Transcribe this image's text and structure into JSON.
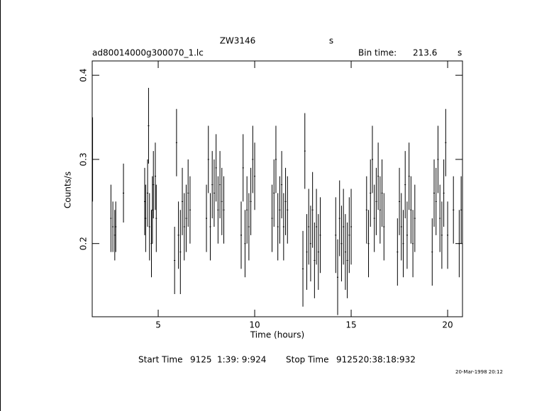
{
  "chart_data": {
    "type": "errorbar",
    "title": "ZW3146",
    "subtitle": "s",
    "file": "ad80014000g300070_1.lc",
    "bin_time_label": "Bin time:",
    "bin_time": 213.6,
    "bin_time_unit": "s",
    "x_label": "Time (hours)",
    "y_label": "Counts/s",
    "start_label": "Start Time",
    "start_day": "9125",
    "start_time": "1:39: 9:924",
    "stop_label": "Stop Time",
    "stop_day": "9125",
    "stop_time": "20:38:18:932",
    "date": "20-Mar-1998 20:12",
    "color": "#000000",
    "xlim": [
      1.58,
      20.77
    ],
    "ylim": [
      0.113,
      0.417
    ],
    "xticks": [
      5,
      10,
      15,
      20
    ],
    "yticks": [
      0.2,
      0.3,
      0.4
    ],
    "x": [
      1.6,
      2.55,
      2.65,
      2.75,
      2.8,
      3.2,
      4.3,
      4.35,
      4.45,
      4.5,
      4.55,
      4.65,
      4.7,
      4.75,
      4.85,
      4.9,
      5.85,
      5.95,
      6.05,
      6.15,
      6.25,
      6.35,
      6.45,
      6.55,
      6.65,
      7.5,
      7.6,
      7.7,
      7.8,
      7.9,
      8.0,
      8.1,
      8.2,
      8.3,
      8.4,
      9.3,
      9.4,
      9.5,
      9.6,
      9.7,
      9.8,
      9.9,
      10.0,
      10.9,
      11.0,
      11.1,
      11.2,
      11.3,
      11.4,
      11.5,
      11.6,
      11.7,
      12.5,
      12.6,
      12.7,
      12.8,
      12.9,
      13.0,
      13.1,
      13.2,
      13.3,
      13.4,
      14.2,
      14.3,
      14.4,
      14.5,
      14.6,
      14.7,
      14.8,
      14.9,
      15.0,
      15.8,
      15.9,
      16.0,
      16.1,
      16.2,
      16.3,
      16.4,
      16.5,
      16.6,
      16.7,
      17.4,
      17.5,
      17.6,
      17.7,
      17.8,
      17.9,
      18.0,
      18.1,
      18.2,
      18.3,
      19.2,
      19.3,
      19.4,
      19.5,
      19.6,
      19.7,
      19.8,
      19.9,
      20.0,
      20.3,
      20.6,
      20.7
    ],
    "values": [
      0.3,
      0.23,
      0.22,
      0.21,
      0.22,
      0.26,
      0.25,
      0.23,
      0.26,
      0.34,
      0.22,
      0.2,
      0.24,
      0.27,
      0.28,
      0.23,
      0.18,
      0.32,
      0.21,
      0.19,
      0.25,
      0.22,
      0.23,
      0.26,
      0.24,
      0.23,
      0.3,
      0.22,
      0.27,
      0.26,
      0.29,
      0.24,
      0.27,
      0.25,
      0.24,
      0.21,
      0.29,
      0.2,
      0.24,
      0.22,
      0.25,
      0.3,
      0.28,
      0.23,
      0.26,
      0.3,
      0.22,
      0.24,
      0.27,
      0.22,
      0.25,
      0.24,
      0.17,
      0.31,
      0.19,
      0.22,
      0.2,
      0.24,
      0.18,
      0.22,
      0.19,
      0.21,
      0.21,
      0.16,
      0.23,
      0.2,
      0.22,
      0.19,
      0.18,
      0.21,
      0.22,
      0.24,
      0.2,
      0.26,
      0.3,
      0.23,
      0.25,
      0.28,
      0.24,
      0.26,
      0.22,
      0.19,
      0.25,
      0.22,
      0.2,
      0.27,
      0.21,
      0.28,
      0.24,
      0.2,
      0.23,
      0.19,
      0.26,
      0.25,
      0.3,
      0.23,
      0.21,
      0.26,
      0.32,
      0.21,
      0.24,
      0.2,
      0.24
    ],
    "errors": [
      0.05,
      0.04,
      0.03,
      0.03,
      0.03,
      0.035,
      0.04,
      0.04,
      0.04,
      0.045,
      0.04,
      0.04,
      0.04,
      0.04,
      0.04,
      0.04,
      0.04,
      0.04,
      0.04,
      0.05,
      0.04,
      0.04,
      0.04,
      0.04,
      0.04,
      0.04,
      0.04,
      0.04,
      0.04,
      0.04,
      0.04,
      0.04,
      0.04,
      0.04,
      0.04,
      0.04,
      0.04,
      0.04,
      0.04,
      0.04,
      0.04,
      0.04,
      0.04,
      0.04,
      0.04,
      0.04,
      0.04,
      0.04,
      0.04,
      0.04,
      0.04,
      0.04,
      0.045,
      0.045,
      0.045,
      0.045,
      0.045,
      0.045,
      0.045,
      0.045,
      0.045,
      0.045,
      0.045,
      0.045,
      0.045,
      0.045,
      0.045,
      0.045,
      0.045,
      0.045,
      0.045,
      0.04,
      0.04,
      0.04,
      0.04,
      0.04,
      0.04,
      0.04,
      0.04,
      0.04,
      0.04,
      0.04,
      0.04,
      0.04,
      0.04,
      0.04,
      0.04,
      0.04,
      0.04,
      0.04,
      0.04,
      0.04,
      0.04,
      0.04,
      0.04,
      0.04,
      0.04,
      0.04,
      0.04,
      0.04,
      0.04,
      0.04,
      0.04
    ]
  }
}
